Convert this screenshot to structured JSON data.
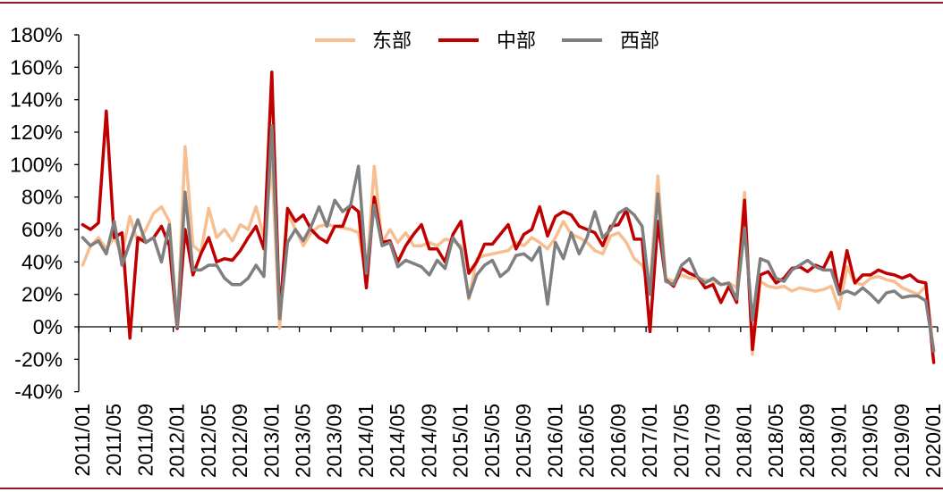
{
  "frame_color": "#8C1B21",
  "chart_data": {
    "type": "line",
    "title": "",
    "xlabel": "",
    "ylabel": "",
    "ylim": [
      -40,
      180
    ],
    "ytick_step": 20,
    "y_tick_labels": [
      "180%",
      "160%",
      "140%",
      "120%",
      "100%",
      "80%",
      "60%",
      "40%",
      "20%",
      "0%",
      "-20%",
      "-40%"
    ],
    "x_tick_labels": [
      "2011/01",
      "2011/05",
      "2011/09",
      "2012/01",
      "2012/05",
      "2012/09",
      "2013/01",
      "2013/05",
      "2013/09",
      "2014/01",
      "2014/05",
      "2014/09",
      "2015/01",
      "2015/05",
      "2015/09",
      "2016/01",
      "2016/05",
      "2016/09",
      "2017/01",
      "2017/05",
      "2017/09",
      "2018/01",
      "2018/05",
      "2018/09",
      "2019/01",
      "2019/05",
      "2019/09",
      "2020/01"
    ],
    "months_per_tick_label": 4,
    "n_points": 109,
    "grid": false,
    "legend_position": "top-center",
    "series": [
      {
        "name": "东部",
        "color": "#F7BF91",
        "values": [
          38,
          50,
          55,
          48,
          55,
          45,
          68,
          52,
          60,
          70,
          74,
          65,
          0,
          111,
          50,
          46,
          73,
          55,
          60,
          53,
          63,
          60,
          74,
          55,
          100,
          -1,
          70,
          60,
          50,
          58,
          62,
          63,
          62,
          61,
          60,
          58,
          30,
          99,
          52,
          60,
          52,
          58,
          50,
          50,
          52,
          50,
          54,
          53,
          50,
          17,
          42,
          44,
          45,
          46,
          47,
          52,
          50,
          55,
          52,
          48,
          55,
          65,
          57,
          55,
          52,
          47,
          45,
          56,
          58,
          52,
          42,
          38,
          25,
          93,
          30,
          28,
          32,
          30,
          30,
          29,
          28,
          26,
          27,
          24,
          83,
          -17,
          28,
          25,
          24,
          25,
          22,
          24,
          23,
          22,
          23,
          25,
          11,
          37,
          27,
          26,
          30,
          31,
          29,
          28,
          24,
          22,
          20,
          25,
          -14
        ]
      },
      {
        "name": "中部",
        "color": "#C00000",
        "values": [
          63,
          60,
          64,
          133,
          55,
          58,
          -7,
          55,
          52,
          55,
          62,
          50,
          -1,
          60,
          32,
          45,
          55,
          40,
          42,
          41,
          47,
          55,
          62,
          48,
          157,
          5,
          73,
          65,
          69,
          60,
          55,
          52,
          62,
          62,
          75,
          71,
          24,
          80,
          52,
          53,
          40,
          50,
          57,
          63,
          48,
          48,
          40,
          57,
          65,
          33,
          40,
          51,
          51,
          57,
          63,
          48,
          57,
          60,
          74,
          56,
          68,
          71,
          69,
          62,
          60,
          58,
          50,
          62,
          63,
          72,
          54,
          54,
          -3,
          65,
          29,
          25,
          36,
          33,
          31,
          24,
          26,
          15,
          25,
          15,
          78,
          -14,
          32,
          34,
          27,
          30,
          36,
          37,
          34,
          38,
          36,
          46,
          21,
          47,
          27,
          32,
          32,
          35,
          33,
          32,
          30,
          32,
          28,
          27,
          -22
        ]
      },
      {
        "name": "西部",
        "color": "#7F7F7F",
        "values": [
          55,
          50,
          53,
          45,
          65,
          38,
          52,
          66,
          52,
          55,
          40,
          63,
          0,
          83,
          35,
          35,
          38,
          38,
          30,
          26,
          26,
          30,
          38,
          31,
          124,
          5,
          52,
          60,
          53,
          62,
          74,
          62,
          78,
          71,
          75,
          99,
          33,
          75,
          50,
          52,
          37,
          41,
          39,
          37,
          32,
          41,
          36,
          55,
          48,
          18,
          32,
          38,
          41,
          31,
          35,
          44,
          45,
          41,
          49,
          14,
          52,
          42,
          58,
          45,
          55,
          71,
          55,
          60,
          70,
          73,
          69,
          62,
          20,
          82,
          28,
          26,
          38,
          42,
          31,
          27,
          30,
          26,
          27,
          17,
          61,
          4,
          42,
          40,
          30,
          28,
          35,
          38,
          41,
          37,
          35,
          35,
          20,
          22,
          20,
          24,
          20,
          15,
          21,
          22,
          18,
          19,
          19,
          16,
          -15
        ]
      }
    ]
  }
}
